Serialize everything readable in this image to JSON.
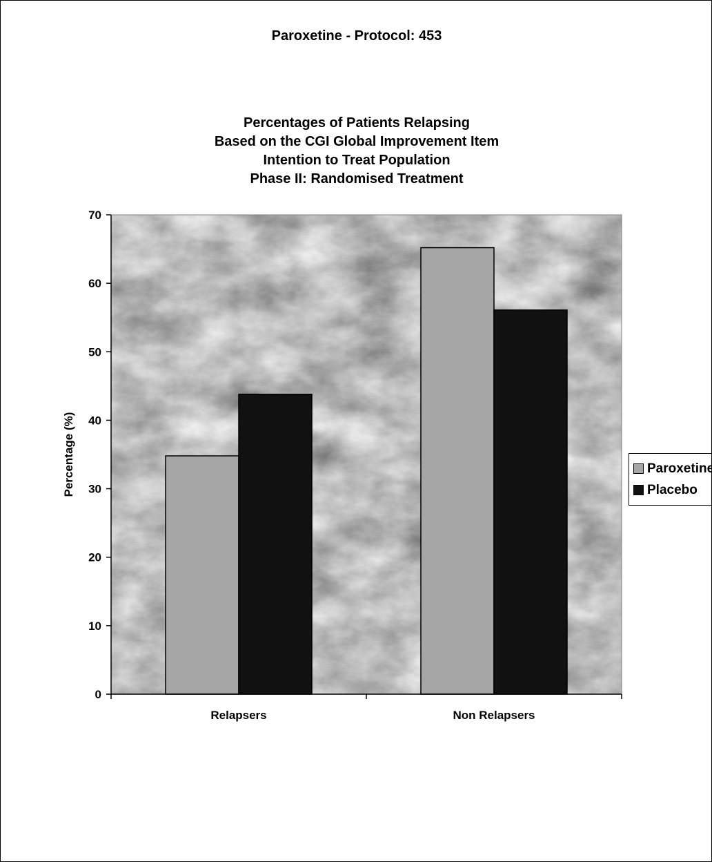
{
  "header": {
    "protocol_title": "Paroxetine - Protocol: 453"
  },
  "chart_data": {
    "type": "bar",
    "title_lines": [
      "Percentages of Patients Relapsing",
      "Based on the CGI Global Improvement Item",
      "Intention to Treat Population",
      "Phase II: Randomised Treatment"
    ],
    "xlabel": "",
    "ylabel": "Percentage (%)",
    "ylim": [
      0,
      70
    ],
    "yticks": [
      0,
      10,
      20,
      30,
      40,
      50,
      60,
      70
    ],
    "categories": [
      "Relapsers",
      "Non Relapsers"
    ],
    "series": [
      {
        "name": "Paroxetine",
        "values": [
          34.8,
          65.2
        ],
        "color": "#a6a6a6"
      },
      {
        "name": "Placebo",
        "values": [
          43.8,
          56.1
        ],
        "color": "#111111"
      }
    ],
    "grid": false,
    "legend_position": "right",
    "plot_background": "marble-gray"
  }
}
